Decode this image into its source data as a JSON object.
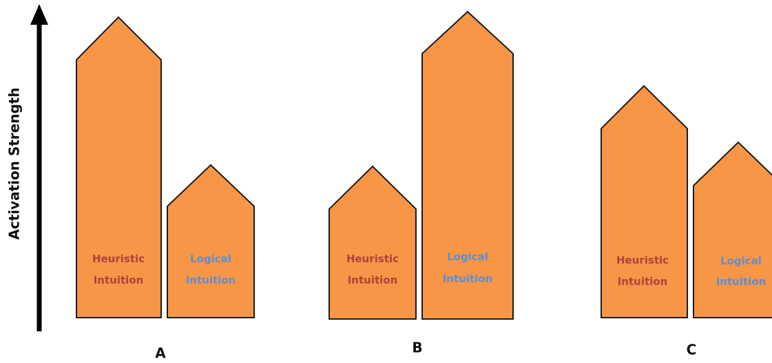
{
  "axis_label": "Activation Strength",
  "groups": [
    {
      "label": "A",
      "bars": [
        {
          "lines": [
            "Heuristic",
            "Intuition"
          ]
        },
        {
          "lines": [
            "Logical",
            "Intuition"
          ]
        }
      ]
    },
    {
      "label": "B",
      "bars": [
        {
          "lines": [
            "Heuristic",
            "Intuition"
          ]
        },
        {
          "lines": [
            "Logical",
            "Intuition"
          ]
        }
      ]
    },
    {
      "label": "C",
      "bars": [
        {
          "lines": [
            "Heuristic",
            "Intuition"
          ]
        },
        {
          "lines": [
            "Logical",
            "Intuition"
          ]
        }
      ]
    }
  ]
}
